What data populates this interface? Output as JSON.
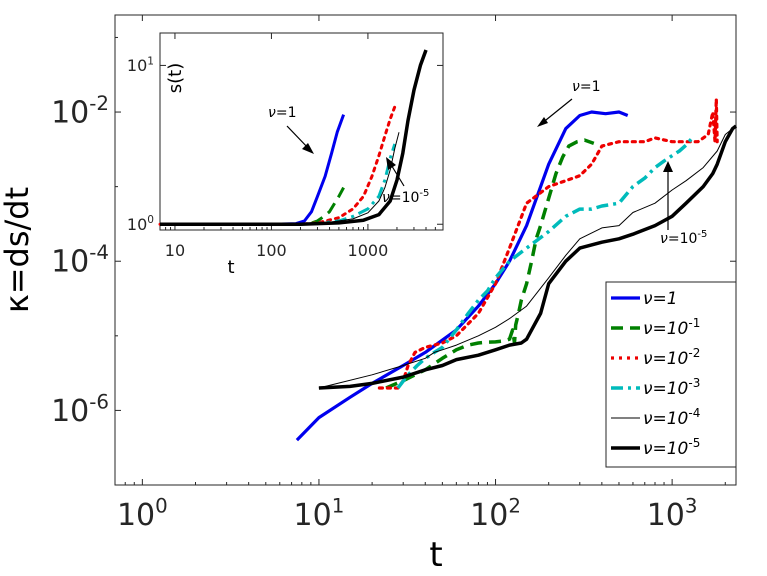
{
  "chart_data": [
    {
      "type": "line",
      "name": "main",
      "xscale": "log",
      "yscale": "log",
      "xlim": [
        0.7,
        2300
      ],
      "ylim": [
        1e-07,
        0.2
      ],
      "xticks": [
        {
          "v": 1,
          "base": "10",
          "exp": "0"
        },
        {
          "v": 10,
          "base": "10",
          "exp": "1"
        },
        {
          "v": 100,
          "base": "10",
          "exp": "2"
        },
        {
          "v": 1000,
          "base": "10",
          "exp": "3"
        }
      ],
      "yticks": [
        {
          "v": 1e-06,
          "base": "10",
          "exp": "-6"
        },
        {
          "v": 0.0001,
          "base": "10",
          "exp": "-4"
        },
        {
          "v": 0.01,
          "base": "10",
          "exp": "-2"
        }
      ],
      "xlabel": "t",
      "ylabel": "κ=ds/dt",
      "legend_position": "bottom-right",
      "annotations": [
        {
          "pre": "ν=",
          "text": "1",
          "sup": ""
        },
        {
          "pre": "ν=",
          "text": "10",
          "sup": "-5"
        }
      ],
      "series": [
        {
          "name": "ν=1",
          "base": "ν=1",
          "sup": "",
          "color": "#0000ee",
          "style": "solid",
          "width": 3.2,
          "x": [
            7.5,
            10,
            15,
            20,
            30,
            40,
            60,
            80,
            100,
            120,
            150,
            200,
            250,
            300,
            350,
            420,
            500,
            560
          ],
          "y": [
            4e-07,
            8e-07,
            1.5e-06,
            2.3e-06,
            4e-06,
            6e-06,
            1.2e-05,
            2.5e-05,
            5e-05,
            0.0001,
            0.0003,
            0.002,
            0.006,
            0.009,
            0.01,
            0.0095,
            0.01,
            0.009
          ]
        },
        {
          "name": "ν=10-1",
          "base": "ν=10",
          "sup": "-1",
          "color": "#008000",
          "style": "dash",
          "width": 3.5,
          "x": [
            24,
            30,
            40,
            50,
            60,
            70,
            80,
            90,
            100,
            110,
            120,
            125,
            128,
            130,
            135,
            140,
            150,
            160,
            170,
            180,
            200,
            220,
            240,
            260,
            290,
            320,
            360
          ],
          "y": [
            2e-06,
            2.5e-06,
            3.5e-06,
            5e-06,
            6.5e-06,
            7.5e-06,
            8e-06,
            8.2e-06,
            8.3e-06,
            8.5e-06,
            9e-06,
            1.2e-05,
            8e-06,
            1.4e-05,
            2e-05,
            3e-05,
            5e-05,
            0.0001,
            0.0002,
            0.0003,
            0.0007,
            0.0015,
            0.0025,
            0.0035,
            0.004,
            0.0042,
            0.0038
          ]
        },
        {
          "name": "ν=10-2",
          "base": "ν=10",
          "sup": "-2",
          "color": "#ee0000",
          "style": "dot",
          "width": 3.2,
          "x": [
            22,
            25,
            28,
            30,
            32,
            35,
            40,
            50,
            60,
            80,
            100,
            120,
            150,
            200,
            250,
            300,
            350,
            400,
            500,
            600,
            700,
            800,
            1000,
            1200,
            1400,
            1600,
            1700,
            1750,
            1780,
            1800
          ],
          "y": [
            2e-06,
            2e-06,
            2e-06,
            2.5e-06,
            4e-06,
            6e-06,
            7e-06,
            8e-06,
            1e-05,
            2e-05,
            5e-05,
            0.00015,
            0.0006,
            0.001,
            0.0012,
            0.0014,
            0.002,
            0.0035,
            0.004,
            0.004,
            0.004,
            0.0045,
            0.004,
            0.004,
            0.004,
            0.005,
            0.01,
            0.004,
            0.015,
            0.004
          ]
        },
        {
          "name": "ν=10-3",
          "base": "ν=10",
          "sup": "-3",
          "color": "#00bbbb",
          "style": "dashdot",
          "width": 3.5,
          "x": [
            28,
            32,
            36,
            40,
            45,
            50,
            60,
            70,
            80,
            90,
            100,
            120,
            150,
            200,
            250,
            300,
            350,
            400,
            500,
            600,
            700,
            800,
            900,
            1000,
            1100,
            1200,
            1300
          ],
          "y": [
            2e-06,
            3e-06,
            4e-06,
            5e-06,
            6e-06,
            7e-06,
            1.2e-05,
            2e-05,
            3e-05,
            4e-05,
            6e-05,
            0.0001,
            0.00015,
            0.00025,
            0.0004,
            0.0005,
            0.0005,
            0.00055,
            0.0006,
            0.001,
            0.0013,
            0.0018,
            0.0022,
            0.0026,
            0.003,
            0.0036,
            0.0045
          ]
        },
        {
          "name": "ν=10-4",
          "base": "ν=10",
          "sup": "-4",
          "color": "#000000",
          "style": "solid",
          "width": 1.0,
          "x": [
            10,
            20,
            30,
            40,
            45,
            50,
            60,
            80,
            100,
            120,
            150,
            200,
            250,
            300,
            400,
            500,
            600,
            800,
            1000,
            1200,
            1500,
            1800,
            2000,
            2200
          ],
          "y": [
            2e-06,
            3e-06,
            4e-06,
            5e-06,
            6e-06,
            6.5e-06,
            7.5e-06,
            1e-05,
            1.3e-05,
            1.7e-05,
            2.5e-05,
            6e-05,
            0.00012,
            0.0002,
            0.00028,
            0.0003,
            0.00045,
            0.0006,
            0.0009,
            0.0012,
            0.0018,
            0.003,
            0.005,
            0.006
          ]
        },
        {
          "name": "ν=10-5",
          "base": "ν=10",
          "sup": "-5",
          "color": "#000000",
          "style": "solid",
          "width": 3.5,
          "x": [
            10,
            15,
            20,
            30,
            40,
            50,
            60,
            80,
            100,
            120,
            140,
            150,
            160,
            180,
            200,
            250,
            300,
            400,
            500,
            600,
            800,
            1000,
            1200,
            1500,
            1700,
            1800,
            2000,
            2200,
            2300
          ],
          "y": [
            2e-06,
            2.1e-06,
            2.3e-06,
            2.8e-06,
            3.5e-06,
            4e-06,
            4.8e-06,
            5.5e-06,
            6.5e-06,
            7.5e-06,
            8e-06,
            9e-06,
            1.2e-05,
            2e-05,
            5e-05,
            0.0001,
            0.00015,
            0.00018,
            0.0002,
            0.00023,
            0.0003,
            0.0004,
            0.0006,
            0.001,
            0.0015,
            0.002,
            0.004,
            0.006,
            0.0065
          ]
        }
      ]
    },
    {
      "type": "line",
      "name": "inset",
      "xscale": "log",
      "yscale": "log",
      "xlim": [
        7,
        6000
      ],
      "ylim": [
        0.92,
        16
      ],
      "xticks": [
        {
          "v": 10,
          "text": "10"
        },
        {
          "v": 100,
          "text": "100"
        },
        {
          "v": 1000,
          "text": "1000"
        }
      ],
      "yticks": [
        {
          "v": 1,
          "base": "10",
          "exp": "0"
        },
        {
          "v": 10,
          "base": "10",
          "exp": "1"
        }
      ],
      "xlabel": "t",
      "ylabel": "s(t)",
      "annotations": [
        {
          "pre": "ν=",
          "text": "1",
          "sup": ""
        },
        {
          "pre": "ν=",
          "text": "10",
          "sup": "-5"
        }
      ],
      "series": [
        {
          "name": "ν=1",
          "color": "#0000ee",
          "style": "solid",
          "width": 3,
          "x": [
            7,
            100,
            180,
            220,
            260,
            300,
            360,
            420,
            480,
            560
          ],
          "y": [
            1,
            1,
            1.01,
            1.05,
            1.2,
            1.5,
            2.0,
            2.8,
            3.8,
            4.9
          ]
        },
        {
          "name": "ν=10-1",
          "color": "#008000",
          "style": "dash",
          "width": 3,
          "x": [
            7,
            100,
            200,
            250,
            300,
            350,
            400,
            450,
            500,
            560
          ],
          "y": [
            1,
            1,
            1,
            1.01,
            1.05,
            1.12,
            1.2,
            1.35,
            1.5,
            1.7
          ]
        },
        {
          "name": "ν=10-2",
          "color": "#ee0000",
          "style": "dot",
          "width": 3,
          "x": [
            7,
            200,
            300,
            500,
            700,
            900,
            1100,
            1300,
            1500,
            1700,
            1900
          ],
          "y": [
            1,
            1,
            1.02,
            1.1,
            1.25,
            1.5,
            2.0,
            2.7,
            3.6,
            4.6,
            5.5
          ]
        },
        {
          "name": "ν=10-3",
          "color": "#00bbbb",
          "style": "dashdot",
          "width": 3,
          "x": [
            7,
            200,
            300,
            500,
            700,
            1000,
            1300,
            1500,
            1700,
            1900
          ],
          "y": [
            1,
            1,
            1.01,
            1.05,
            1.12,
            1.25,
            1.5,
            1.9,
            2.6,
            3.2
          ]
        },
        {
          "name": "ν=10-4",
          "color": "#000000",
          "style": "solid",
          "width": 1,
          "x": [
            7,
            200,
            400,
            700,
            1000,
            1300,
            1500,
            1700,
            1900,
            2100
          ],
          "y": [
            1,
            1,
            1.03,
            1.08,
            1.18,
            1.4,
            1.7,
            2.2,
            3.0,
            3.8
          ]
        },
        {
          "name": "ν=10-5",
          "color": "#000000",
          "style": "solid",
          "width": 3.5,
          "x": [
            7,
            200,
            500,
            900,
            1300,
            1700,
            2000,
            2300,
            2600,
            3000,
            3500,
            4000
          ],
          "y": [
            1,
            1,
            1.02,
            1.06,
            1.15,
            1.4,
            1.9,
            2.8,
            4.5,
            7,
            10,
            12.5
          ]
        }
      ]
    }
  ]
}
